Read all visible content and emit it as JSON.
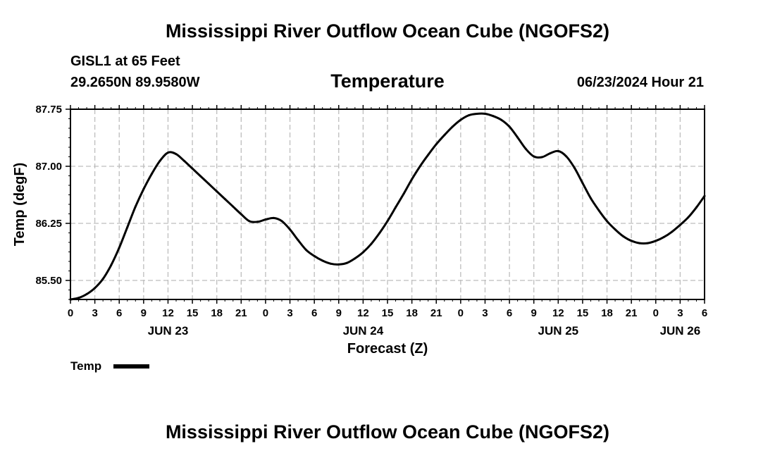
{
  "page": {
    "title": "Mississippi River Outflow Ocean Cube (NGOFS2)",
    "bottom_title": "Mississippi River Outflow Ocean Cube (NGOFS2)",
    "station": "GISL1 at 65 Feet",
    "coords": "29.2650N  89.9580W",
    "variable": "Temperature",
    "datetime": "06/23/2024 Hour 21"
  },
  "chart_data": {
    "type": "line",
    "title": "Temperature",
    "xlabel": "Forecast (Z)",
    "ylabel": "Temp (degF)",
    "xlim": [
      0,
      78
    ],
    "ylim": [
      85.25,
      87.75
    ],
    "grid": true,
    "x_ticks": [
      {
        "hour": 0,
        "label": "0"
      },
      {
        "hour": 3,
        "label": "3"
      },
      {
        "hour": 6,
        "label": "6"
      },
      {
        "hour": 9,
        "label": "9"
      },
      {
        "hour": 12,
        "label": "12"
      },
      {
        "hour": 15,
        "label": "15"
      },
      {
        "hour": 18,
        "label": "18"
      },
      {
        "hour": 21,
        "label": "21"
      },
      {
        "hour": 24,
        "label": "0"
      },
      {
        "hour": 27,
        "label": "3"
      },
      {
        "hour": 30,
        "label": "6"
      },
      {
        "hour": 33,
        "label": "9"
      },
      {
        "hour": 36,
        "label": "12"
      },
      {
        "hour": 39,
        "label": "15"
      },
      {
        "hour": 42,
        "label": "18"
      },
      {
        "hour": 45,
        "label": "21"
      },
      {
        "hour": 48,
        "label": "0"
      },
      {
        "hour": 51,
        "label": "3"
      },
      {
        "hour": 54,
        "label": "6"
      },
      {
        "hour": 57,
        "label": "9"
      },
      {
        "hour": 60,
        "label": "12"
      },
      {
        "hour": 63,
        "label": "15"
      },
      {
        "hour": 66,
        "label": "18"
      },
      {
        "hour": 69,
        "label": "21"
      },
      {
        "hour": 72,
        "label": "0"
      },
      {
        "hour": 75,
        "label": "3"
      },
      {
        "hour": 78,
        "label": "6"
      }
    ],
    "date_labels": [
      {
        "hour": 12,
        "label": "JUN 23"
      },
      {
        "hour": 36,
        "label": "JUN 24"
      },
      {
        "hour": 60,
        "label": "JUN 25"
      },
      {
        "hour": 75,
        "label": "JUN 26"
      }
    ],
    "y_ticks": [
      {
        "value": 85.5,
        "label": "85.50"
      },
      {
        "value": 86.25,
        "label": "86.25"
      },
      {
        "value": 87.0,
        "label": "87.00"
      },
      {
        "value": 87.75,
        "label": "87.75"
      }
    ],
    "legend": {
      "label": "Temp",
      "position": "bottom-left"
    },
    "series": [
      {
        "name": "Temp",
        "color": "#000000",
        "x": [
          0,
          1,
          2,
          3,
          4,
          5,
          6,
          7,
          8,
          9,
          10,
          11,
          12,
          13,
          14,
          15,
          16,
          17,
          18,
          19,
          20,
          21,
          22,
          23,
          24,
          25,
          26,
          27,
          28,
          29,
          30,
          31,
          32,
          33,
          34,
          35,
          36,
          37,
          38,
          39,
          40,
          41,
          42,
          43,
          44,
          45,
          46,
          47,
          48,
          49,
          50,
          51,
          52,
          53,
          54,
          55,
          56,
          57,
          58,
          59,
          60,
          61,
          62,
          63,
          64,
          65,
          66,
          67,
          68,
          69,
          70,
          71,
          72,
          73,
          74,
          75,
          76,
          77,
          78
        ],
        "values": [
          85.25,
          85.27,
          85.32,
          85.4,
          85.52,
          85.7,
          85.93,
          86.2,
          86.47,
          86.7,
          86.9,
          87.07,
          87.18,
          87.16,
          87.07,
          86.97,
          86.87,
          86.77,
          86.67,
          86.57,
          86.47,
          86.37,
          86.28,
          86.27,
          86.3,
          86.32,
          86.28,
          86.17,
          86.03,
          85.9,
          85.82,
          85.76,
          85.72,
          85.71,
          85.73,
          85.79,
          85.87,
          85.98,
          86.12,
          86.28,
          86.46,
          86.64,
          86.83,
          87.0,
          87.15,
          87.29,
          87.41,
          87.52,
          87.61,
          87.67,
          87.69,
          87.69,
          87.66,
          87.61,
          87.52,
          87.38,
          87.23,
          87.13,
          87.12,
          87.17,
          87.2,
          87.13,
          86.98,
          86.78,
          86.58,
          86.42,
          86.28,
          86.17,
          86.08,
          86.02,
          85.99,
          85.99,
          86.02,
          86.07,
          86.14,
          86.23,
          86.33,
          86.46,
          86.61
        ]
      }
    ]
  }
}
